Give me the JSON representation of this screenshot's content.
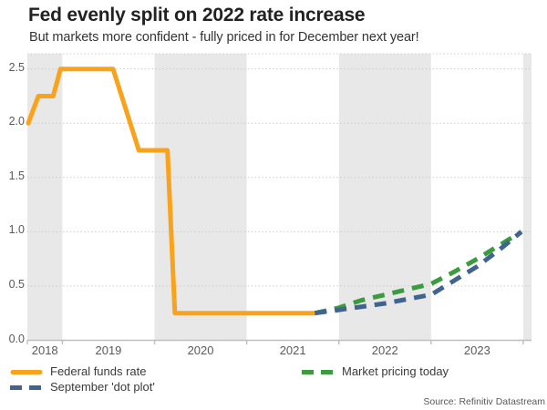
{
  "header": {
    "title": "Fed evenly split on 2022 rate increase",
    "subtitle": "But markets more confident - fully priced in for December next year!"
  },
  "source": {
    "text": "Source: Refinitiv Datastream"
  },
  "chart_data": {
    "type": "line",
    "title": "Fed evenly split on 2022 rate increase",
    "subtitle": "But markets more confident - fully priced in for December next year!",
    "x_range": [
      2018.62,
      2024.09
    ],
    "y_range": [
      0,
      2.64
    ],
    "y_ticks": [
      0.0,
      0.5,
      1.0,
      1.5,
      2.0,
      2.5
    ],
    "x_year_labels": [
      "2018",
      "2019",
      "2020",
      "2021",
      "2022",
      "2023"
    ],
    "x_tick_boundaries": [
      2018.62,
      2019,
      2020,
      2021,
      2022,
      2023,
      2024
    ],
    "shaded_bands": [
      [
        2018.62,
        2019
      ],
      [
        2020,
        2021
      ],
      [
        2022,
        2023
      ],
      [
        2024,
        2024.09
      ]
    ],
    "grid": "dotted-horizontal",
    "legend_position": "bottom",
    "colors": {
      "band": "#E8E8E8",
      "grid": "#CCCCCC",
      "axis": "#BEBEBE"
    },
    "series": [
      {
        "name": "Federal funds rate",
        "color": "#F9A21B",
        "style": "solid",
        "points": [
          [
            2018.63,
            2.0
          ],
          [
            2018.74,
            2.25
          ],
          [
            2018.9,
            2.25
          ],
          [
            2018.98,
            2.5
          ],
          [
            2019.55,
            2.5
          ],
          [
            2019.83,
            1.75
          ],
          [
            2020.14,
            1.75
          ],
          [
            2020.22,
            0.25
          ],
          [
            2021.74,
            0.25
          ]
        ]
      },
      {
        "name": "Market pricing today",
        "color": "#3C9B3F",
        "style": "dashed",
        "points": [
          [
            2021.74,
            0.25
          ],
          [
            2022.0,
            0.3
          ],
          [
            2022.25,
            0.37
          ],
          [
            2022.5,
            0.42
          ],
          [
            2022.75,
            0.47
          ],
          [
            2023.0,
            0.52
          ],
          [
            2023.25,
            0.63
          ],
          [
            2023.5,
            0.75
          ],
          [
            2023.75,
            0.88
          ],
          [
            2023.98,
            1.0
          ]
        ]
      },
      {
        "name": "September 'dot plot'",
        "color": "#40648F",
        "style": "dashed",
        "points": [
          [
            2021.74,
            0.25
          ],
          [
            2022.0,
            0.28
          ],
          [
            2022.25,
            0.31
          ],
          [
            2022.5,
            0.34
          ],
          [
            2022.75,
            0.38
          ],
          [
            2023.0,
            0.42
          ],
          [
            2023.25,
            0.55
          ],
          [
            2023.5,
            0.68
          ],
          [
            2023.75,
            0.84
          ],
          [
            2023.98,
            1.0
          ]
        ]
      }
    ]
  }
}
